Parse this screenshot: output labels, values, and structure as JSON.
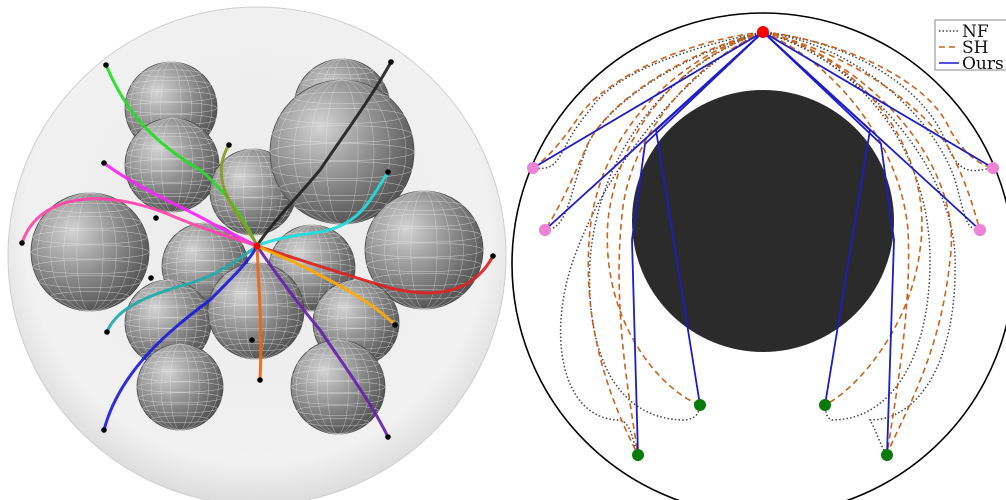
{
  "legend": {
    "items": [
      {
        "label": "NF",
        "style": "dotted",
        "color": "#444444"
      },
      {
        "label": "SH",
        "style": "dashed",
        "color": "#c8641e"
      },
      {
        "label": "Ours",
        "style": "solid",
        "color": "#1c1cc8"
      }
    ]
  },
  "colors": {
    "obstacle": "#2b2b2b",
    "start_node": "#ff0000",
    "goal_pink": "#ee82d6",
    "goal_green": "#0a7a0a",
    "boundary": "#000000",
    "sphere": "#8c8c8c",
    "container": "#e6e6e6"
  },
  "left_panel": {
    "path_colors": [
      "#22dd22",
      "#222222",
      "#ff22ff",
      "#ff44aa",
      "#22dddd",
      "#8a9a22",
      "#dd2222",
      "#22aaaa",
      "#1c1cdd",
      "#6622aa",
      "#ee6611",
      "#ffaa00"
    ]
  }
}
